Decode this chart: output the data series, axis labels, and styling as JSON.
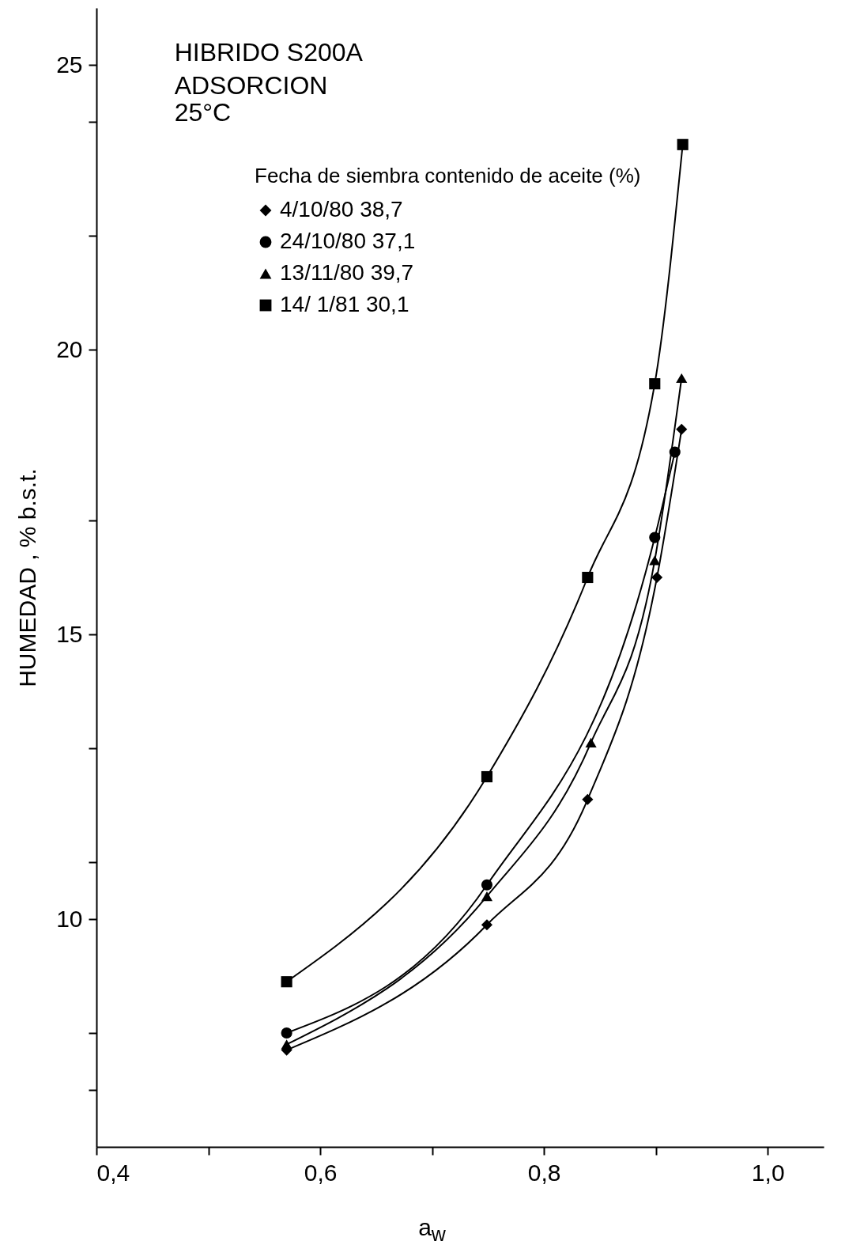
{
  "chart_data": {
    "type": "line",
    "title": "HIBRIDO S200A",
    "subtitle": "ADSORCION\n25°C",
    "xlabel": "a$_{w}$",
    "ylabel": "HUMEDAD , % b.s.t.",
    "legend_title": "Fecha de siembra   contenido de aceite (%)",
    "series": [
      {
        "name": "4/10/80   38,7",
        "color": "#000000",
        "marker": "diamond",
        "x": [
          0.57,
          0.749,
          0.839,
          0.901,
          0.923
        ],
        "values": [
          7.7,
          9.9,
          12.1,
          16.0,
          18.6
        ]
      },
      {
        "name": "24/10/80   37,1",
        "color": "#000000",
        "marker": "circle",
        "x": [
          0.57,
          0.749,
          0.899,
          0.917
        ],
        "values": [
          8.0,
          10.6,
          16.7,
          18.2
        ]
      },
      {
        "name": "13/11/80   39,7",
        "color": "#000000",
        "marker": "triangle",
        "x": [
          0.57,
          0.749,
          0.842,
          0.899,
          0.923
        ],
        "values": [
          7.8,
          10.4,
          13.1,
          16.3,
          19.5
        ]
      },
      {
        "name": "14/ 1/81   30,1",
        "color": "#000000",
        "marker": "square",
        "x": [
          0.57,
          0.749,
          0.839,
          0.899,
          0.924
        ],
        "values": [
          8.9,
          12.5,
          16.0,
          19.4,
          23.6
        ]
      }
    ],
    "xlim": [
      0.4,
      1.05
    ],
    "ylim": [
      6,
      26
    ],
    "xticks": [
      {
        "value": 0.4,
        "label": "0,4"
      },
      {
        "value": 0.5,
        "label": null
      },
      {
        "value": 0.6,
        "label": "0,6"
      },
      {
        "value": 0.7,
        "label": null
      },
      {
        "value": 0.8,
        "label": "0,8"
      },
      {
        "value": 0.9,
        "label": null
      },
      {
        "value": 1.0,
        "label": "1,0"
      }
    ],
    "yticks": [
      {
        "value": 7,
        "label": null
      },
      {
        "value": 8,
        "label": null
      },
      10,
      {
        "value": 11,
        "label": null
      },
      {
        "value": 13,
        "label": null
      },
      15,
      {
        "value": 17,
        "label": null
      },
      20,
      {
        "value": 22,
        "label": null
      },
      {
        "value": 24,
        "label": null
      },
      25
    ],
    "grid": false,
    "legend": "top left",
    "line_style": "solid"
  }
}
